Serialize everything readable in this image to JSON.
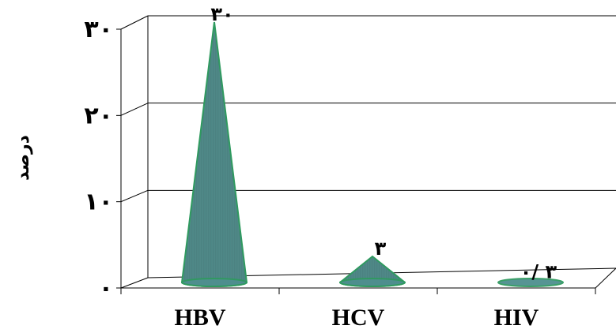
{
  "chart_data": {
    "type": "bar",
    "style": "3d-cone",
    "categories": [
      "HBV",
      "HCV",
      "HIV"
    ],
    "values": [
      30,
      3,
      0.3
    ],
    "data_labels": [
      "۳۰",
      "۳",
      "۰/ ۳"
    ],
    "ylabel": "درصد",
    "ylim": [
      0,
      30
    ],
    "yticks": [
      0,
      10,
      20,
      30
    ],
    "ytick_labels": [
      "۰",
      "۱۰",
      "۲۰",
      "۳۰"
    ],
    "grid": true,
    "legend": "none",
    "colors": {
      "cone": "#4f8f8f",
      "cone_edge": "#2f9a5f",
      "axis": "#000000",
      "grid": "#000000"
    }
  }
}
